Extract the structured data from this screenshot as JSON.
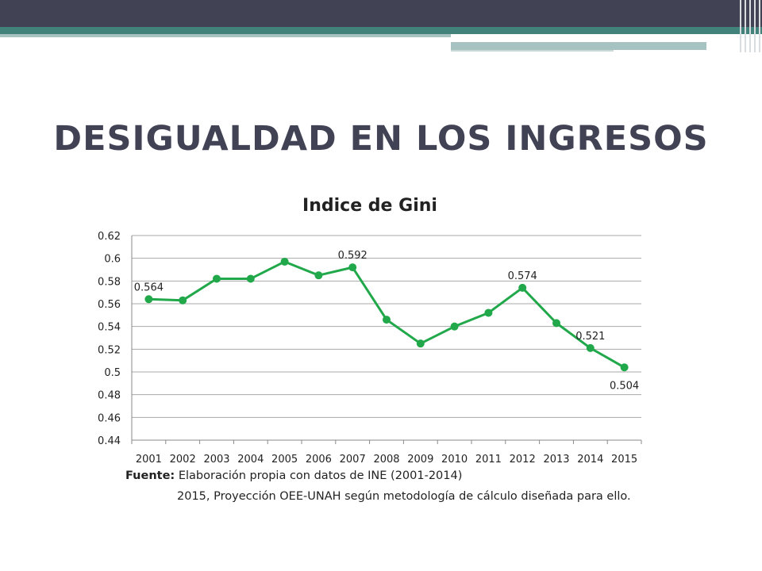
{
  "slide": {
    "title": "DESIGUALDAD EN LOS INGRESOS"
  },
  "chart_data": {
    "type": "line",
    "title": "Indice de Gini",
    "xlabel": "",
    "ylabel": "",
    "categories": [
      "2001",
      "2002",
      "2003",
      "2004",
      "2005",
      "2006",
      "2007",
      "2008",
      "2009",
      "2010",
      "2011",
      "2012",
      "2013",
      "2014",
      "2015"
    ],
    "series": [
      {
        "values": [
          0.564,
          0.563,
          0.582,
          0.582,
          0.597,
          0.585,
          0.592,
          0.546,
          0.525,
          0.54,
          0.552,
          0.574,
          0.543,
          0.521,
          0.504
        ],
        "color": "#21a84a"
      }
    ],
    "ylim": [
      0.44,
      0.62
    ],
    "yticks": [
      0.44,
      0.46,
      0.48,
      0.5,
      0.52,
      0.54,
      0.56,
      0.58,
      0.6,
      0.62
    ],
    "ytick_labels": [
      "0.44",
      "0.46",
      "0.48",
      "0.5",
      "0.52",
      "0.54",
      "0.56",
      "0.58",
      "0.6",
      "0.62"
    ],
    "grid": true,
    "legend": "none",
    "data_labels": [
      {
        "index": 0,
        "text": "0.564",
        "position": "above"
      },
      {
        "index": 6,
        "text": "0.592",
        "position": "above"
      },
      {
        "index": 11,
        "text": "0.574",
        "position": "above"
      },
      {
        "index": 13,
        "text": "0.521",
        "position": "above"
      },
      {
        "index": 14,
        "text": "0.504",
        "position": "below"
      }
    ]
  },
  "source": {
    "label": "Fuente:",
    "line1": "Elaboración propia con datos de INE (2001-2014)",
    "line2": "2015, Proyección OEE-UNAH según metodología de cálculo diseñada para ello."
  }
}
